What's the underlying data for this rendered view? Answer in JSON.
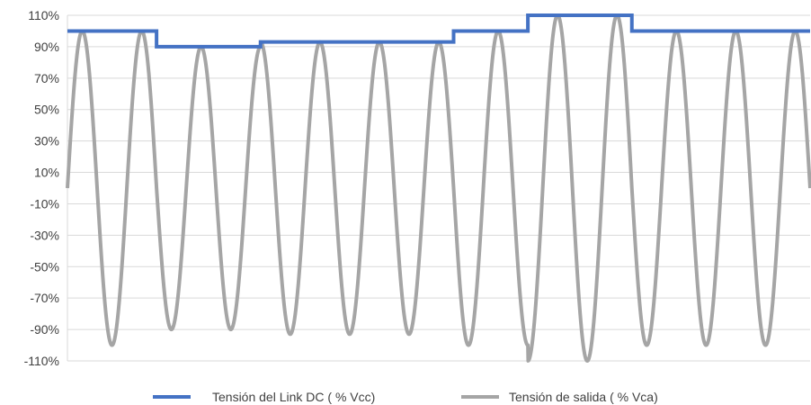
{
  "chart_data": {
    "type": "line",
    "title": "",
    "xlabel": "",
    "ylabel": "",
    "ylim": [
      -110,
      110
    ],
    "y_ticks": [
      "110%",
      "90%",
      "70%",
      "50%",
      "30%",
      "10%",
      "-10%",
      "-30%",
      "-50%",
      "-70%",
      "-90%",
      "-110%"
    ],
    "grid": "horizontal",
    "legend_position": "bottom",
    "series": [
      {
        "name": "Tensión del Link DC ( % Vcc)",
        "color": "#4472C4",
        "kind": "step",
        "segments": [
          {
            "x_start": 0.0,
            "x_end": 1.5,
            "value": 100
          },
          {
            "x_start": 1.5,
            "x_end": 3.25,
            "value": 90
          },
          {
            "x_start": 3.25,
            "x_end": 6.5,
            "value": 93
          },
          {
            "x_start": 6.5,
            "x_end": 7.75,
            "value": 100
          },
          {
            "x_start": 7.75,
            "x_end": 9.5,
            "value": 110
          },
          {
            "x_start": 9.5,
            "x_end": 12.5,
            "value": 100
          }
        ]
      },
      {
        "name": "Tensión de salida ( % Vca)",
        "color": "#A5A5A5",
        "kind": "sine",
        "cycles": 12.5,
        "x_range": [
          0,
          12.5
        ],
        "amplitude_segments": [
          {
            "x_start": 0.0,
            "x_end": 1.5,
            "value": 100
          },
          {
            "x_start": 1.5,
            "x_end": 3.25,
            "value": 90
          },
          {
            "x_start": 3.25,
            "x_end": 6.5,
            "value": 93
          },
          {
            "x_start": 6.5,
            "x_end": 7.75,
            "value": 100
          },
          {
            "x_start": 7.75,
            "x_end": 9.5,
            "value": 110
          },
          {
            "x_start": 9.5,
            "x_end": 12.5,
            "value": 100
          }
        ]
      }
    ]
  }
}
